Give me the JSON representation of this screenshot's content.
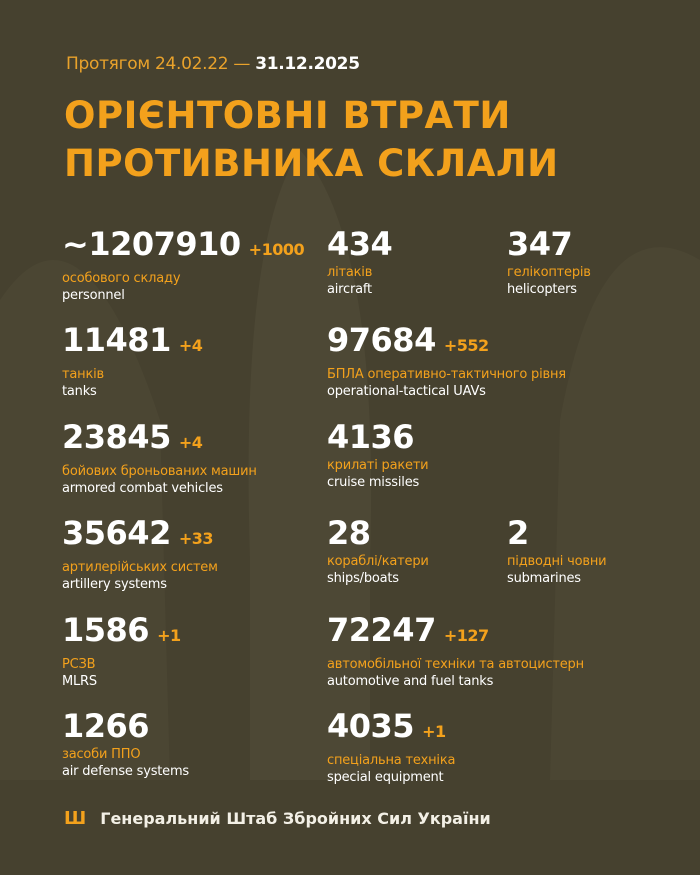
{
  "header": {
    "period_prefix": "Протягом 24.02.22 —",
    "period_end": "31.12.2025",
    "title_line1": "ОРІЄНТОВНІ ВТРАТИ",
    "title_line2": "ПРОТИВНИКА СКЛАЛИ"
  },
  "colors": {
    "background": "#46412f",
    "accent": "#f3a11c",
    "text": "#ffffff"
  },
  "stats": [
    {
      "value": "~1207910",
      "increase": "+1000",
      "ua": "особового складу",
      "en": "personnel"
    },
    {
      "value": "434",
      "increase": "",
      "ua": "літаків",
      "en": "aircraft"
    },
    {
      "value": "347",
      "increase": "",
      "ua": "гелікоптерів",
      "en": "helicopters"
    },
    {
      "value": "11481",
      "increase": "+4",
      "ua": "танків",
      "en": "tanks"
    },
    {
      "value": "97684",
      "increase": "+552",
      "ua": "БПЛА оперативно-тактичного рівня",
      "en": "operational-tactical UAVs"
    },
    {
      "value": "23845",
      "increase": "+4",
      "ua": "бойових броньованих машин",
      "en": "armored combat vehicles"
    },
    {
      "value": "4136",
      "increase": "",
      "ua": "крилаті ракети",
      "en": "cruise missiles"
    },
    {
      "value": "35642",
      "increase": "+33",
      "ua": "артилерійських систем",
      "en": "artillery systems"
    },
    {
      "value": "28",
      "increase": "",
      "ua": "кораблі/катери",
      "en": "ships/boats"
    },
    {
      "value": "2",
      "increase": "",
      "ua": "підводні човни",
      "en": "submarines"
    },
    {
      "value": "1586",
      "increase": "+1",
      "ua": "РСЗВ",
      "en": "MLRS"
    },
    {
      "value": "72247",
      "increase": "+127",
      "ua": "автомобільної техніки та автоцистерн",
      "en": "automotive and fuel tanks"
    },
    {
      "value": "1266",
      "increase": "",
      "ua": "засоби ППО",
      "en": "air defense systems"
    },
    {
      "value": "4035",
      "increase": "+1",
      "ua": "спеціальна техніка",
      "en": "special equipment"
    }
  ],
  "footer": {
    "icon": "trident-icon",
    "text": "Генеральний Штаб Збройних Сил України"
  }
}
